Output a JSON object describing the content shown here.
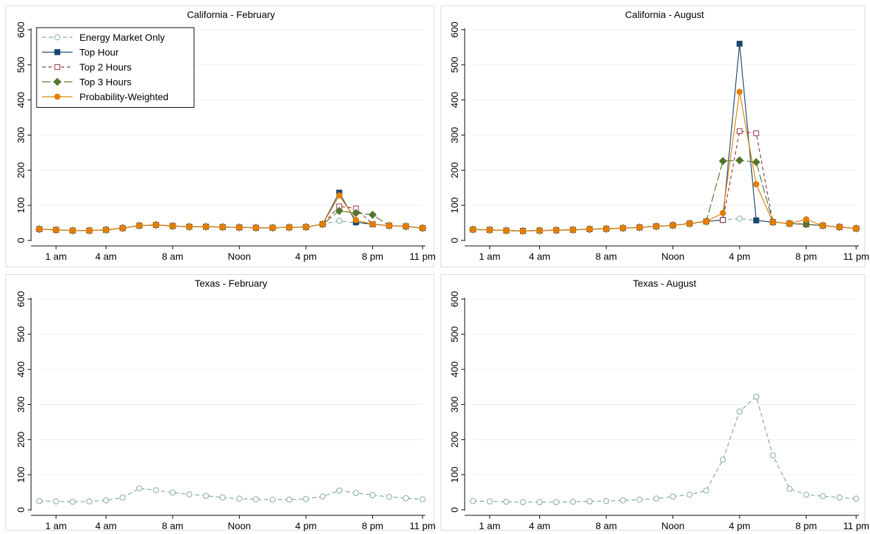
{
  "chart_data": [
    {
      "type": "line",
      "title": "California - February",
      "xlabel": "",
      "ylabel": "",
      "ylim": [
        0,
        600
      ],
      "xlim": [
        0,
        23
      ],
      "yticks": [
        0,
        100,
        200,
        300,
        400,
        500,
        600
      ],
      "xticks": [
        {
          "x": 1,
          "label": "1 am"
        },
        {
          "x": 4,
          "label": "4 am"
        },
        {
          "x": 8,
          "label": "8 am"
        },
        {
          "x": 12,
          "label": "Noon"
        },
        {
          "x": 16,
          "label": "4 pm"
        },
        {
          "x": 20,
          "label": "8 pm"
        },
        {
          "x": 23,
          "label": "11 pm"
        }
      ],
      "grid": true,
      "legend": "top-left",
      "x": [
        0,
        1,
        2,
        3,
        4,
        5,
        6,
        7,
        8,
        9,
        10,
        11,
        12,
        13,
        14,
        15,
        16,
        17,
        18,
        19,
        20,
        21,
        22,
        23
      ],
      "series": [
        {
          "name": "Energy Market Only",
          "values": [
            32,
            30,
            28,
            28,
            30,
            35,
            42,
            44,
            41,
            39,
            39,
            38,
            37,
            36,
            36,
            37,
            38,
            46,
            56,
            50,
            46,
            42,
            40,
            35
          ]
        },
        {
          "name": "Top Hour",
          "values": [
            32,
            30,
            28,
            28,
            30,
            35,
            42,
            44,
            41,
            39,
            39,
            38,
            37,
            36,
            36,
            37,
            38,
            46,
            136,
            52,
            46,
            42,
            40,
            35
          ]
        },
        {
          "name": "Top 2 Hours",
          "values": [
            32,
            30,
            28,
            28,
            30,
            35,
            42,
            44,
            41,
            39,
            39,
            38,
            37,
            36,
            36,
            37,
            38,
            46,
            97,
            91,
            46,
            42,
            40,
            35
          ]
        },
        {
          "name": "Top 3 Hours",
          "values": [
            32,
            30,
            28,
            28,
            30,
            35,
            42,
            44,
            41,
            39,
            39,
            38,
            37,
            36,
            36,
            37,
            38,
            46,
            84,
            78,
            73,
            42,
            40,
            35
          ]
        },
        {
          "name": "Probability-Weighted",
          "values": [
            32,
            30,
            28,
            28,
            30,
            35,
            42,
            44,
            41,
            39,
            39,
            38,
            37,
            36,
            36,
            37,
            38,
            46,
            128,
            58,
            46,
            42,
            40,
            35
          ]
        }
      ]
    },
    {
      "type": "line",
      "title": "California - August",
      "xlabel": "",
      "ylabel": "",
      "ylim": [
        0,
        600
      ],
      "xlim": [
        0,
        23
      ],
      "yticks": [
        0,
        100,
        200,
        300,
        400,
        500,
        600
      ],
      "xticks": [
        {
          "x": 1,
          "label": "1 am"
        },
        {
          "x": 4,
          "label": "4 am"
        },
        {
          "x": 8,
          "label": "8 am"
        },
        {
          "x": 12,
          "label": "Noon"
        },
        {
          "x": 16,
          "label": "4 pm"
        },
        {
          "x": 20,
          "label": "8 pm"
        },
        {
          "x": 23,
          "label": "11 pm"
        }
      ],
      "grid": true,
      "x": [
        0,
        1,
        2,
        3,
        4,
        5,
        6,
        7,
        8,
        9,
        10,
        11,
        12,
        13,
        14,
        15,
        16,
        17,
        18,
        19,
        20,
        21,
        22,
        23
      ],
      "series": [
        {
          "name": "Energy Market Only",
          "values": [
            31,
            30,
            28,
            27,
            28,
            29,
            30,
            32,
            33,
            35,
            37,
            40,
            43,
            48,
            54,
            58,
            62,
            57,
            52,
            48,
            46,
            42,
            38,
            34
          ]
        },
        {
          "name": "Top Hour",
          "values": [
            31,
            30,
            28,
            27,
            28,
            29,
            30,
            32,
            33,
            35,
            37,
            40,
            43,
            48,
            54,
            58,
            560,
            57,
            52,
            48,
            46,
            42,
            38,
            34
          ]
        },
        {
          "name": "Top 2 Hours",
          "values": [
            31,
            30,
            28,
            27,
            28,
            29,
            30,
            32,
            33,
            35,
            37,
            40,
            43,
            48,
            54,
            58,
            311,
            305,
            52,
            48,
            46,
            42,
            38,
            34
          ]
        },
        {
          "name": "Top 3 Hours",
          "values": [
            31,
            30,
            28,
            27,
            28,
            29,
            30,
            32,
            33,
            35,
            37,
            40,
            43,
            48,
            54,
            226,
            228,
            223,
            52,
            48,
            46,
            42,
            38,
            34
          ]
        },
        {
          "name": "Probability-Weighted",
          "values": [
            31,
            30,
            28,
            27,
            28,
            29,
            30,
            32,
            33,
            35,
            37,
            40,
            43,
            48,
            54,
            78,
            423,
            160,
            52,
            48,
            60,
            42,
            38,
            34
          ]
        }
      ]
    },
    {
      "type": "line",
      "title": "Texas - February",
      "xlabel": "",
      "ylabel": "",
      "ylim": [
        0,
        600
      ],
      "xlim": [
        0,
        23
      ],
      "yticks": [
        0,
        100,
        200,
        300,
        400,
        500,
        600
      ],
      "xticks": [
        {
          "x": 1,
          "label": "1 am"
        },
        {
          "x": 4,
          "label": "4 am"
        },
        {
          "x": 8,
          "label": "8 am"
        },
        {
          "x": 12,
          "label": "Noon"
        },
        {
          "x": 16,
          "label": "4 pm"
        },
        {
          "x": 20,
          "label": "8 pm"
        },
        {
          "x": 23,
          "label": "11 pm"
        }
      ],
      "grid": true,
      "x": [
        0,
        1,
        2,
        3,
        4,
        5,
        6,
        7,
        8,
        9,
        10,
        11,
        12,
        13,
        14,
        15,
        16,
        17,
        18,
        19,
        20,
        21,
        22,
        23
      ],
      "series": [
        {
          "name": "Energy Market Only",
          "values": [
            25,
            24,
            23,
            24,
            27,
            35,
            61,
            56,
            49,
            44,
            40,
            35,
            32,
            30,
            29,
            29,
            31,
            38,
            55,
            48,
            42,
            37,
            33,
            30
          ]
        }
      ]
    },
    {
      "type": "line",
      "title": "Texas - August",
      "xlabel": "",
      "ylabel": "",
      "ylim": [
        0,
        600
      ],
      "xlim": [
        0,
        23
      ],
      "yticks": [
        0,
        100,
        200,
        300,
        400,
        500,
        600
      ],
      "xticks": [
        {
          "x": 1,
          "label": "1 am"
        },
        {
          "x": 4,
          "label": "4 am"
        },
        {
          "x": 8,
          "label": "8 am"
        },
        {
          "x": 12,
          "label": "Noon"
        },
        {
          "x": 16,
          "label": "4 pm"
        },
        {
          "x": 20,
          "label": "8 pm"
        },
        {
          "x": 23,
          "label": "11 pm"
        }
      ],
      "grid": true,
      "x": [
        0,
        1,
        2,
        3,
        4,
        5,
        6,
        7,
        8,
        9,
        10,
        11,
        12,
        13,
        14,
        15,
        16,
        17,
        18,
        19,
        20,
        21,
        22,
        23
      ],
      "series": [
        {
          "name": "Energy Market Only",
          "values": [
            25,
            24,
            23,
            22,
            22,
            22,
            23,
            24,
            25,
            27,
            29,
            32,
            38,
            43,
            55,
            143,
            280,
            322,
            155,
            60,
            43,
            39,
            35,
            32
          ]
        }
      ]
    }
  ],
  "series_styles": {
    "Energy Market Only": {
      "color": "#7aa79c",
      "dash": "6,4",
      "marker": "circle-open"
    },
    "Top Hour": {
      "color": "#1a476f",
      "dash": "",
      "marker": "square-filled"
    },
    "Top 2 Hours": {
      "color": "#90353b",
      "dash": "5,4",
      "marker": "square-open"
    },
    "Top 3 Hours": {
      "color": "#55752f",
      "dash": "12,4",
      "marker": "diamond-filled"
    },
    "Probability-Weighted": {
      "color": "#e37e00",
      "dash": "",
      "marker": "circle-filled"
    }
  }
}
